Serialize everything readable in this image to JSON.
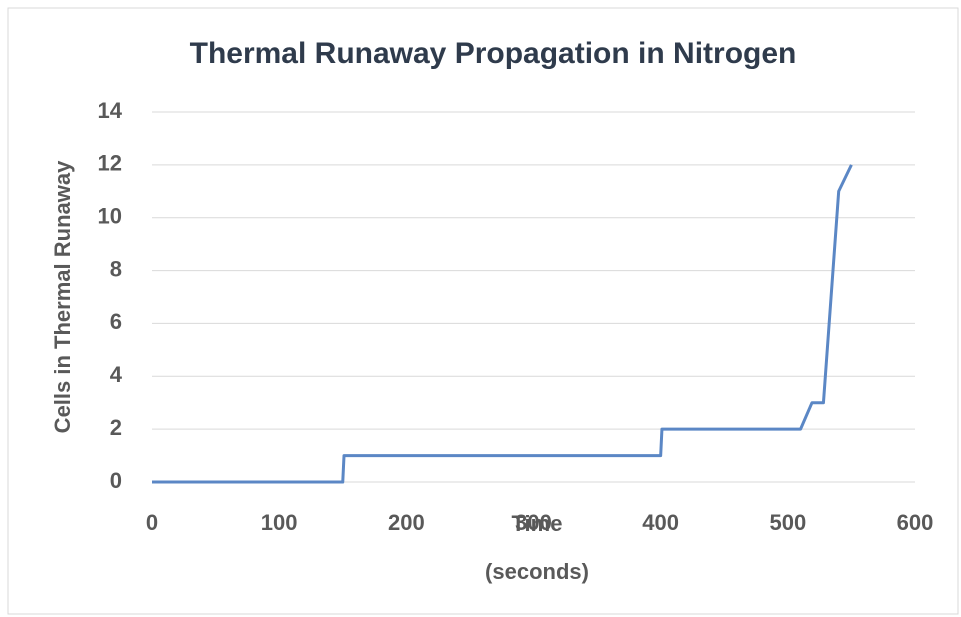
{
  "chart_data": {
    "type": "line",
    "title": "Thermal Runaway Propagation in Nitrogen",
    "x_label": "Time (seconds)",
    "y_label": "Cells in Thermal Runaway",
    "series": [
      {
        "name": "Cells in Thermal Runaway",
        "color": "#5b87c5",
        "x": [
          0,
          150,
          151,
          400,
          401,
          510,
          519,
          528,
          540,
          550
        ],
        "values": [
          0,
          0,
          1,
          1,
          2,
          2,
          3,
          3,
          11,
          12
        ]
      }
    ],
    "xlim": [
      0,
      600
    ],
    "xticks": [
      0,
      100,
      200,
      300,
      400,
      500,
      600
    ],
    "ylim": [
      0,
      14
    ],
    "yticks": [
      0,
      2,
      4,
      6,
      8,
      10,
      12,
      14
    ],
    "grid": true
  }
}
